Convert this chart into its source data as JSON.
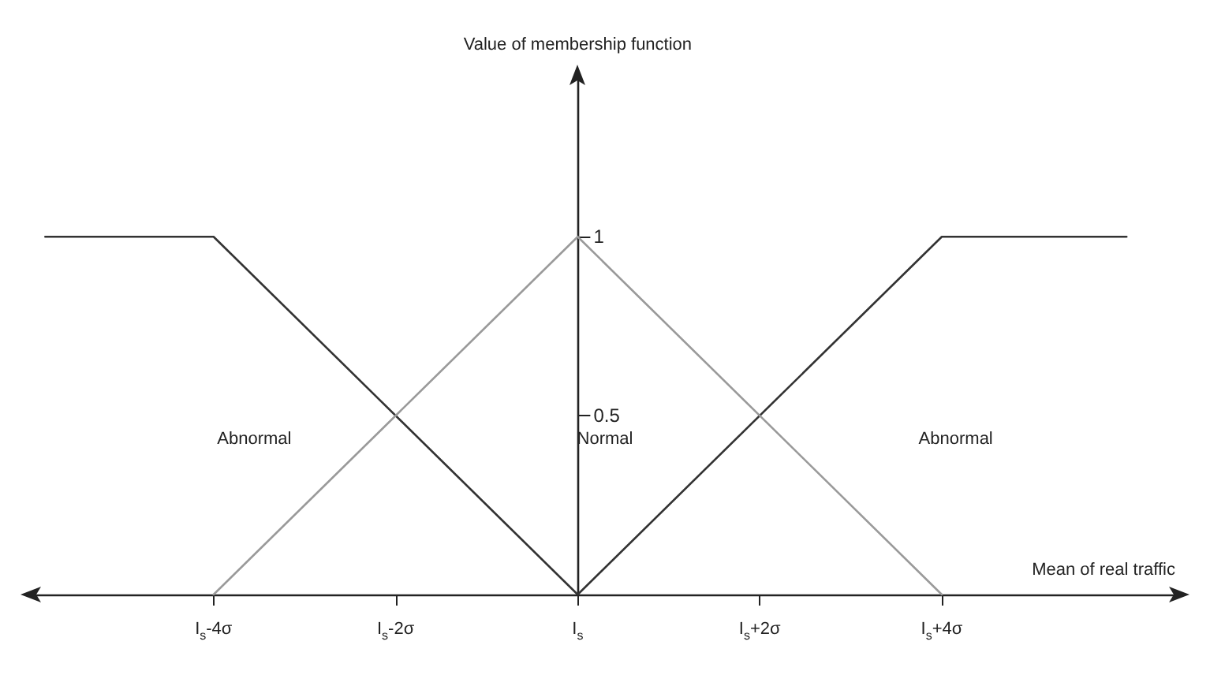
{
  "chart_data": {
    "type": "line",
    "xlabel": "Mean of real traffic",
    "ylabel": "Value of membership function",
    "xlim": [
      -6,
      6.6
    ],
    "ylim": [
      0,
      1.45
    ],
    "xticks": [
      {
        "value": -4,
        "label": "I$_{s}$-4σ"
      },
      {
        "value": -2,
        "label": "I$_{s}$-2σ"
      },
      {
        "value": 0,
        "label": "I$_{s}$"
      },
      {
        "value": 2,
        "label": "I$_{s}$+2σ"
      },
      {
        "value": 4,
        "label": "I$_{s}$+4σ"
      }
    ],
    "yticks": [
      0.5,
      1
    ],
    "series": [
      {
        "color": "#333333",
        "x": [
          -5.85,
          -4,
          0,
          4,
          6.03
        ],
        "values": [
          1,
          1,
          0,
          1,
          1
        ]
      },
      {
        "color": "#9a9a9a",
        "x": [
          -4,
          0,
          4
        ],
        "values": [
          0,
          1,
          0
        ]
      }
    ],
    "annotations": [
      "Abnormal",
      "Normal",
      "Abnormal"
    ],
    "grid": false,
    "marker": "none",
    "line_style": "solid"
  }
}
